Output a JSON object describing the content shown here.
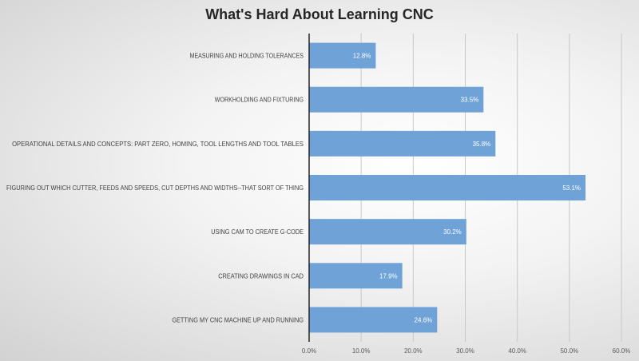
{
  "chart_data": {
    "type": "bar",
    "orientation": "horizontal",
    "title": "What's Hard About Learning CNC",
    "categories": [
      "MEASURING AND HOLDING TOLERANCES",
      "WORKHOLDING AND FIXTURING",
      "OPERATIONAL DETAILS AND CONCEPTS:  PART ZERO, HOMING, TOOL LENGTHS AND TOOL TABLES",
      "FIGURING OUT WHICH CUTTER, FEEDS AND SPEEDS, CUT DEPTHS AND WIDTHS--THAT SORT OF THING",
      "USING CAM TO CREATE G-CODE",
      "CREATING DRAWINGS IN CAD",
      "GETTING MY CNC MACHINE UP AND RUNNING"
    ],
    "values": [
      12.8,
      33.5,
      35.8,
      53.1,
      30.2,
      17.9,
      24.6
    ],
    "data_labels": [
      "12.8%",
      "33.5%",
      "35.8%",
      "53.1%",
      "30.2%",
      "17.9%",
      "24.6%"
    ],
    "xlim": [
      0,
      60
    ],
    "xticks": [
      "0.0%",
      "10.0%",
      "20.0%",
      "30.0%",
      "40.0%",
      "50.0%",
      "60.0%"
    ],
    "grid": true,
    "bar_color": "#6fa3d8"
  }
}
